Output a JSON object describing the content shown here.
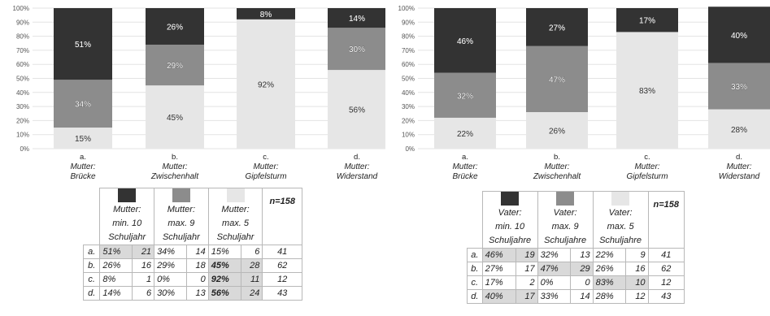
{
  "colors": {
    "dark": "#333333",
    "mid": "#8c8c8c",
    "light": "#e6e6e6"
  },
  "chart_data": [
    {
      "type": "bar",
      "stacked": true,
      "ylim": [
        0,
        100
      ],
      "yticks": [
        "0%",
        "10%",
        "20%",
        "30%",
        "40%",
        "50%",
        "60%",
        "70%",
        "80%",
        "90%",
        "100%"
      ],
      "categories": [
        {
          "letter": "a.",
          "name": "Mutter:",
          "sub": "Brücke"
        },
        {
          "letter": "b.",
          "name": "Mutter:",
          "sub": "Zwischenhalt"
        },
        {
          "letter": "c.",
          "name": "Mutter:",
          "sub": "Gipfelsturm"
        },
        {
          "letter": "d.",
          "name": "Mutter:",
          "sub": "Widerstand"
        }
      ],
      "series": [
        {
          "key": "light",
          "values": [
            15,
            45,
            92,
            56
          ],
          "labels": [
            "15%",
            "45%",
            "92%",
            "56%"
          ]
        },
        {
          "key": "mid",
          "values": [
            34,
            29,
            0,
            30
          ],
          "labels": [
            "34%",
            "29%",
            "",
            "30%"
          ]
        },
        {
          "key": "dark",
          "values": [
            51,
            26,
            8,
            14
          ],
          "labels": [
            "51%",
            "26%",
            "8%",
            "14%"
          ]
        }
      ]
    },
    {
      "type": "bar",
      "stacked": true,
      "ylim": [
        0,
        100
      ],
      "yticks": [
        "0%",
        "10%",
        "20%",
        "30%",
        "40%",
        "50%",
        "60%",
        "70%",
        "80%",
        "90%",
        "100%"
      ],
      "categories": [
        {
          "letter": "a.",
          "name": "Mutter:",
          "sub": "Brücke"
        },
        {
          "letter": "b.",
          "name": "Mutter:",
          "sub": "Zwischenhalt"
        },
        {
          "letter": "c.",
          "name": "Mutter:",
          "sub": "Gipfelsturm"
        },
        {
          "letter": "d.",
          "name": "Mutter:",
          "sub": "Widerstand"
        }
      ],
      "series": [
        {
          "key": "light",
          "values": [
            22,
            26,
            83,
            28
          ],
          "labels": [
            "22%",
            "26%",
            "83%",
            "28%"
          ]
        },
        {
          "key": "mid",
          "values": [
            32,
            47,
            0,
            33
          ],
          "labels": [
            "32%",
            "47%",
            "",
            "33%"
          ]
        },
        {
          "key": "dark",
          "values": [
            46,
            27,
            17,
            40
          ],
          "labels": [
            "46%",
            "27%",
            "17%",
            "40%"
          ]
        }
      ]
    }
  ],
  "tables": [
    {
      "headers": [
        {
          "l1": "Mutter:",
          "l2": "min. 10",
          "l3": "Schuljahr"
        },
        {
          "l1": "Mutter:",
          "l2": "max. 9",
          "l3": "Schuljahr"
        },
        {
          "l1": "Mutter:",
          "l2": "max. 5",
          "l3": "Schuljahr"
        }
      ],
      "n_label": "n=158",
      "rows": [
        {
          "label": "a.",
          "cells": [
            [
              "51%",
              "21"
            ],
            [
              "34%",
              "14"
            ],
            [
              "15%",
              "6"
            ]
          ],
          "hl": 0,
          "n": "41"
        },
        {
          "label": "b.",
          "cells": [
            [
              "26%",
              "16"
            ],
            [
              "29%",
              "18"
            ],
            [
              "45%",
              "28"
            ]
          ],
          "hl": 2,
          "n": "62"
        },
        {
          "label": "c.",
          "cells": [
            [
              "8%",
              "1"
            ],
            [
              "0%",
              "0"
            ],
            [
              "92%",
              "11"
            ]
          ],
          "hl": 2,
          "n": "12"
        },
        {
          "label": "d.",
          "cells": [
            [
              "14%",
              "6"
            ],
            [
              "30%",
              "13"
            ],
            [
              "56%",
              "24"
            ]
          ],
          "hl": 2,
          "n": "43"
        }
      ]
    },
    {
      "headers": [
        {
          "l1": "Vater:",
          "l2": "min. 10",
          "l3": "Schuljahre"
        },
        {
          "l1": "Vater:",
          "l2": "max. 9",
          "l3": "Schuljahre"
        },
        {
          "l1": "Vater:",
          "l2": "max. 5",
          "l3": "Schuljahre"
        }
      ],
      "n_label": "n=158",
      "rows": [
        {
          "label": "a.",
          "cells": [
            [
              "46%",
              "19"
            ],
            [
              "32%",
              "13"
            ],
            [
              "22%",
              "9"
            ]
          ],
          "hl": 0,
          "n": "41"
        },
        {
          "label": "b.",
          "cells": [
            [
              "27%",
              "17"
            ],
            [
              "47%",
              "29"
            ],
            [
              "26%",
              "16"
            ]
          ],
          "hl": 1,
          "n": "62"
        },
        {
          "label": "c.",
          "cells": [
            [
              "17%",
              "2"
            ],
            [
              "0%",
              "0"
            ],
            [
              "83%",
              "10"
            ]
          ],
          "hl": 2,
          "n": "12"
        },
        {
          "label": "d.",
          "cells": [
            [
              "40%",
              "17"
            ],
            [
              "33%",
              "14"
            ],
            [
              "28%",
              "12"
            ]
          ],
          "hl": 0,
          "n": "43"
        }
      ]
    }
  ]
}
